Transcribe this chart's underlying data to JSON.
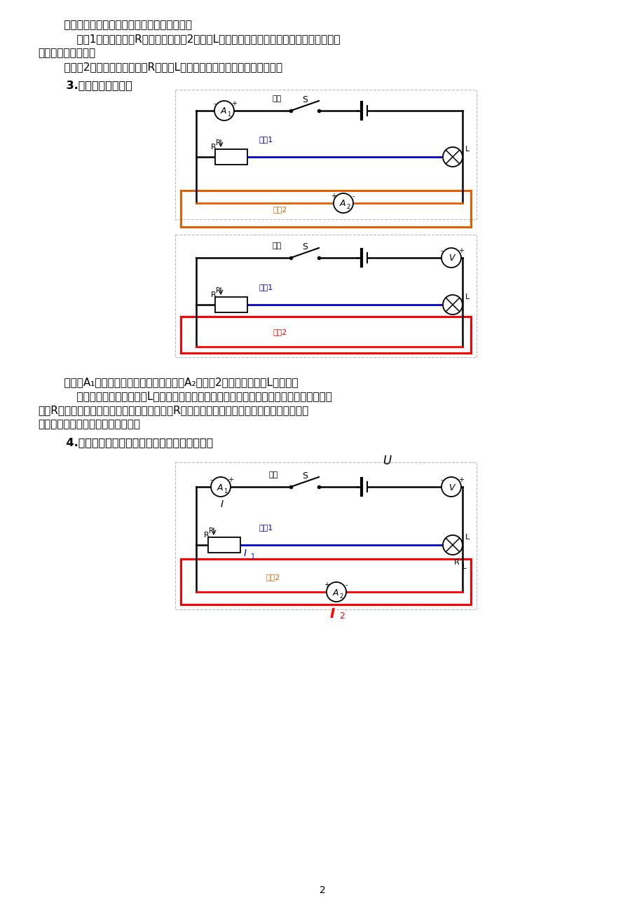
{
  "page_bg": "#ffffff",
  "text_color": "#000000",
  "blue_color": "#0000cc",
  "red_color": "#cc0000",
  "orange_color": "#e06000",
  "para1": "    电流从电源正极出发到达分支点，电流分流。",
  "para2": "    支路1经滑动变阻器R到汇合点；支路2经灯泡L到汇合点；两条支路的电流在汇合点汇合，",
  "para2b": "然后回到电源负极。",
  "para3": "    电流有2条路径，滑动变阻器R与灯泡L的两端分别连在一起，故二者并联。",
  "heading3": "    3.确定电表测量对象",
  "para_mid1": "    电流表A₁在干路，测量干路电流，电流表A₂在支路2，测量通过灯泡L的电流。",
  "para_mid2": "    电压表两端直接接在灯泡L两端，故测量灯泡两端的电压；电压表两端也能直接接在滑动变",
  "para_mid2b": "阻器R两端，所以电压表也同时测量滑动变阻器R两端的电压；电压表的两端也能直接接到电源",
  "para_mid2c": "两端，所以电压表还测量电源电压。",
  "heading4": "    4.滑片向右移动后各支路电阻、电压、电流分析",
  "page_num": "2"
}
